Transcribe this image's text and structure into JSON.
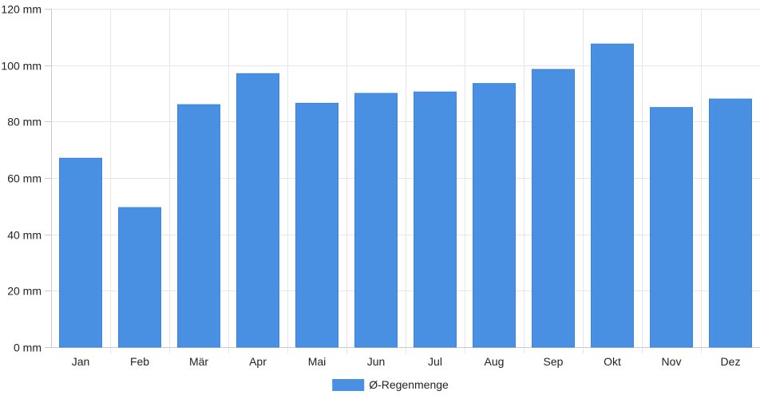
{
  "chart_data": {
    "type": "bar",
    "categories": [
      "Jan",
      "Feb",
      "Mär",
      "Apr",
      "Mai",
      "Jun",
      "Jul",
      "Aug",
      "Sep",
      "Okt",
      "Nov",
      "Dez"
    ],
    "series": [
      {
        "name": "Ø-Regenmenge",
        "color": "#4a90e2",
        "values": [
          67,
          49.5,
          86,
          97,
          86.5,
          90,
          90.5,
          93.5,
          98.5,
          107.5,
          85,
          88
        ]
      }
    ],
    "ylim": [
      0,
      120
    ],
    "yticks": [
      0,
      20,
      40,
      60,
      80,
      100,
      120
    ],
    "ytick_unit": "mm",
    "grid": true,
    "legend_position": "bottom-center"
  }
}
